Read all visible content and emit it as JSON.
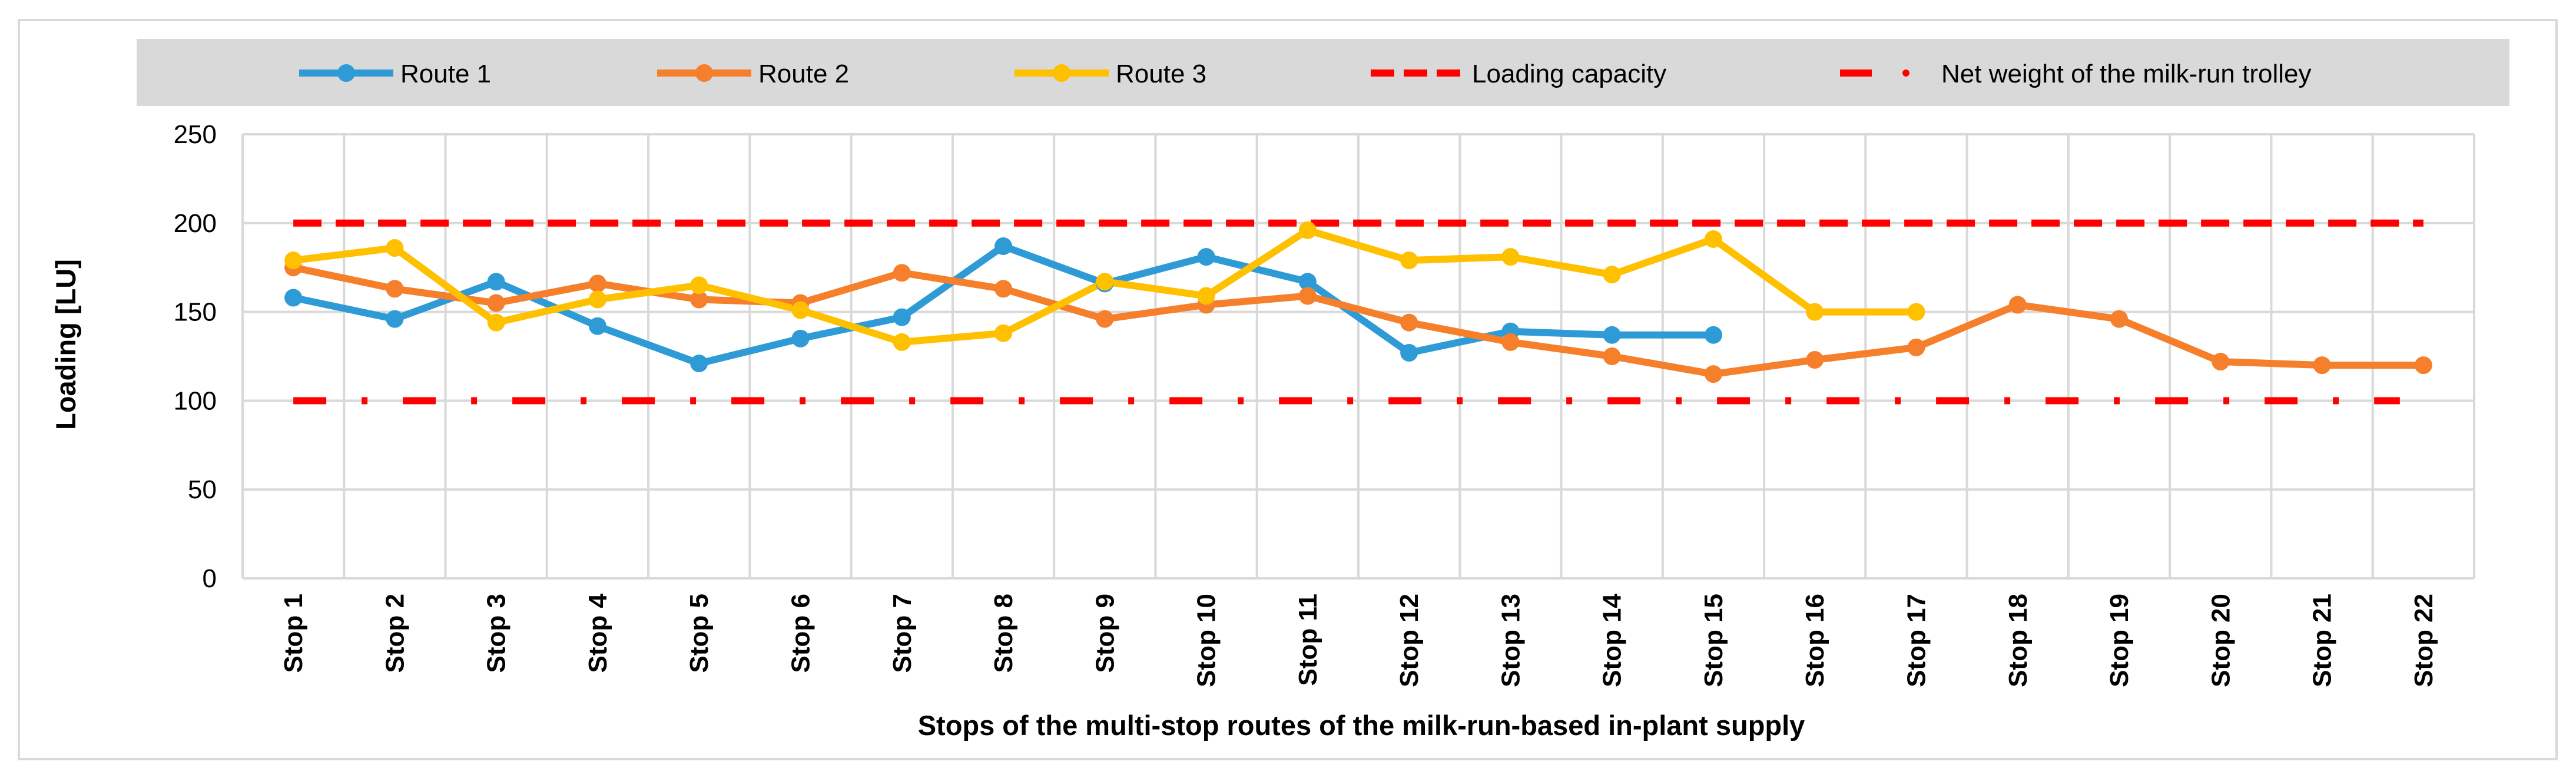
{
  "chart_data": {
    "type": "line",
    "title": "",
    "xlabel": "Stops of the multi-stop routes of the milk-run-based in-plant supply",
    "ylabel": "Loading [LU]",
    "ylim": [
      0,
      250
    ],
    "yticks": [
      0,
      50,
      100,
      150,
      200,
      250
    ],
    "grid": true,
    "legend_position": "top",
    "categories": [
      "Stop 1",
      "Stop 2",
      "Stop 3",
      "Stop 4",
      "Stop 5",
      "Stop 6",
      "Stop 7",
      "Stop 8",
      "Stop 9",
      "Stop 10",
      "Stop 11",
      "Stop 12",
      "Stop 13",
      "Stop 14",
      "Stop 15",
      "Stop 16",
      "Stop 17",
      "Stop 18",
      "Stop 19",
      "Stop 20",
      "Stop 21",
      "Stop 22"
    ],
    "series": [
      {
        "name": "Route 1",
        "color": "#2E9BD6",
        "style": "line-marker",
        "values": [
          158,
          146,
          167,
          142,
          121,
          135,
          147,
          187,
          166,
          181,
          167,
          127,
          139,
          137,
          137,
          null,
          null,
          null,
          null,
          null,
          null,
          null
        ]
      },
      {
        "name": "Route 2",
        "color": "#F57F2A",
        "style": "line-marker",
        "values": [
          175,
          163,
          155,
          166,
          157,
          155,
          172,
          163,
          146,
          154,
          159,
          144,
          133,
          125,
          115,
          123,
          130,
          154,
          146,
          122,
          120,
          120
        ]
      },
      {
        "name": "Route 3",
        "color": "#FFC000",
        "style": "line-marker",
        "values": [
          179,
          186,
          144,
          157,
          165,
          151,
          133,
          138,
          167,
          159,
          196,
          179,
          181,
          171,
          191,
          150,
          150,
          null,
          null,
          null,
          null,
          null
        ]
      },
      {
        "name": "Loading capacity",
        "color": "#FF0000",
        "style": "dash",
        "values": [
          200,
          200,
          200,
          200,
          200,
          200,
          200,
          200,
          200,
          200,
          200,
          200,
          200,
          200,
          200,
          200,
          200,
          200,
          200,
          200,
          200,
          200
        ]
      },
      {
        "name": "Net weight of the milk-run trolley",
        "color": "#FF0000",
        "style": "dash-dot",
        "values": [
          100,
          100,
          100,
          100,
          100,
          100,
          100,
          100,
          100,
          100,
          100,
          100,
          100,
          100,
          100,
          100,
          100,
          100,
          100,
          100,
          100,
          100
        ]
      }
    ]
  }
}
